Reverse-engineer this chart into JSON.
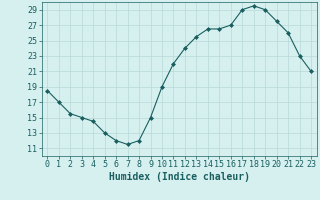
{
  "x": [
    0,
    1,
    2,
    3,
    4,
    5,
    6,
    7,
    8,
    9,
    10,
    11,
    12,
    13,
    14,
    15,
    16,
    17,
    18,
    19,
    20,
    21,
    22,
    23
  ],
  "y": [
    18.5,
    17.0,
    15.5,
    15.0,
    14.5,
    13.0,
    12.0,
    11.5,
    12.0,
    15.0,
    19.0,
    22.0,
    24.0,
    25.5,
    26.5,
    26.5,
    27.0,
    29.0,
    29.5,
    29.0,
    27.5,
    26.0,
    23.0,
    21.0
  ],
  "line_color": "#1a5f5f",
  "marker": "D",
  "marker_size": 2,
  "bg_color": "#d6f0f0",
  "grid_color": "#b8d8d8",
  "xlabel": "Humidex (Indice chaleur)",
  "xlabel_fontsize": 7,
  "tick_fontsize": 6,
  "ylim": [
    10,
    30
  ],
  "yticks": [
    11,
    13,
    15,
    17,
    19,
    21,
    23,
    25,
    27,
    29
  ],
  "xlim": [
    -0.5,
    23.5
  ],
  "xticks": [
    0,
    1,
    2,
    3,
    4,
    5,
    6,
    7,
    8,
    9,
    10,
    11,
    12,
    13,
    14,
    15,
    16,
    17,
    18,
    19,
    20,
    21,
    22,
    23
  ]
}
